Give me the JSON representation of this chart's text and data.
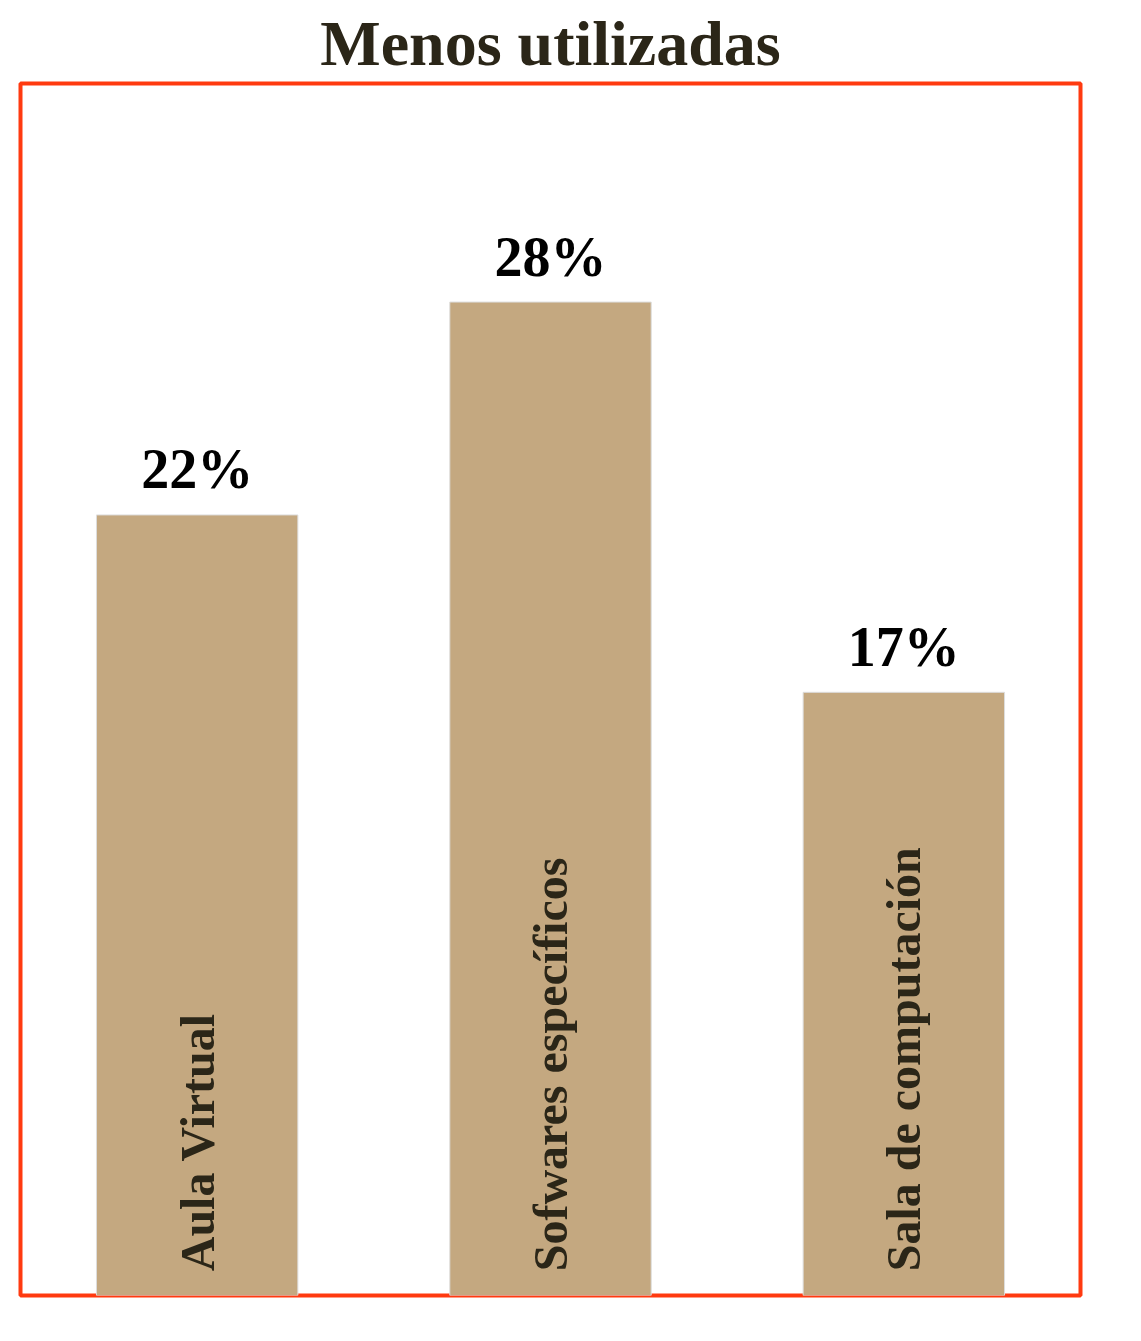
{
  "chart_data": {
    "type": "bar",
    "title": "Menos utilizadas",
    "categories": [
      "Aula Virtual",
      "Sofwares específicos",
      "Sala de computación"
    ],
    "values": [
      22,
      28,
      17
    ],
    "color": "#c4a880",
    "data_labels": true,
    "value_labels": [
      "22%",
      "28%",
      "17%"
    ]
  }
}
